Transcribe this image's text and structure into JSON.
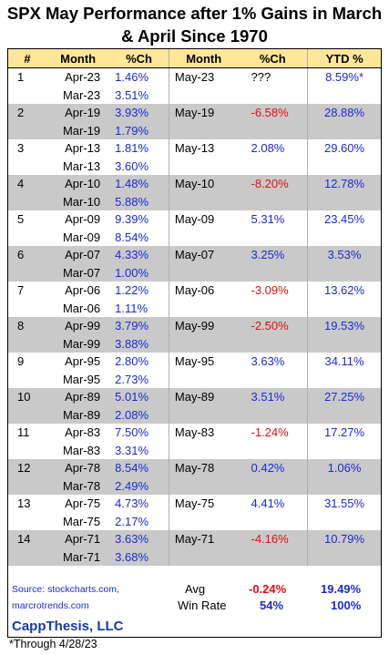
{
  "title_line1": "SPX May Performance after 1% Gains in March",
  "title_line2": "& April Since 1970",
  "headers": [
    "#",
    "Month",
    "%Ch",
    "Month",
    "%Ch",
    "YTD %"
  ],
  "rows": [
    {
      "n": "1",
      "apr": "Apr-23",
      "apr_ch": "1.46%",
      "mar": "Mar-23",
      "mar_ch": "3.51%",
      "may": "May-23",
      "may_ch": "???",
      "may_sign": "unk",
      "ytd": "8.59%*"
    },
    {
      "n": "2",
      "apr": "Apr-19",
      "apr_ch": "3.93%",
      "mar": "Mar-19",
      "mar_ch": "1.79%",
      "may": "May-19",
      "may_ch": "-6.58%",
      "may_sign": "neg",
      "ytd": "28.88%"
    },
    {
      "n": "3",
      "apr": "Apr-13",
      "apr_ch": "1.81%",
      "mar": "Mar-13",
      "mar_ch": "3.60%",
      "may": "May-13",
      "may_ch": "2.08%",
      "may_sign": "pos",
      "ytd": "29.60%"
    },
    {
      "n": "4",
      "apr": "Apr-10",
      "apr_ch": "1.48%",
      "mar": "Mar-10",
      "mar_ch": "5.88%",
      "may": "May-10",
      "may_ch": "-8.20%",
      "may_sign": "neg",
      "ytd": "12.78%"
    },
    {
      "n": "5",
      "apr": "Apr-09",
      "apr_ch": "9.39%",
      "mar": "Mar-09",
      "mar_ch": "8.54%",
      "may": "May-09",
      "may_ch": "5.31%",
      "may_sign": "pos",
      "ytd": "23.45%"
    },
    {
      "n": "6",
      "apr": "Apr-07",
      "apr_ch": "4.33%",
      "mar": "Mar-07",
      "mar_ch": "1.00%",
      "may": "May-07",
      "may_ch": "3.25%",
      "may_sign": "pos",
      "ytd": "3.53%"
    },
    {
      "n": "7",
      "apr": "Apr-06",
      "apr_ch": "1.22%",
      "mar": "Mar-06",
      "mar_ch": "1.11%",
      "may": "May-06",
      "may_ch": "-3.09%",
      "may_sign": "neg",
      "ytd": "13.62%"
    },
    {
      "n": "8",
      "apr": "Apr-99",
      "apr_ch": "3.79%",
      "mar": "Mar-99",
      "mar_ch": "3.88%",
      "may": "May-99",
      "may_ch": "-2.50%",
      "may_sign": "neg",
      "ytd": "19.53%"
    },
    {
      "n": "9",
      "apr": "Apr-95",
      "apr_ch": "2.80%",
      "mar": "Mar-95",
      "mar_ch": "2.73%",
      "may": "May-95",
      "may_ch": "3.63%",
      "may_sign": "pos",
      "ytd": "34.11%"
    },
    {
      "n": "10",
      "apr": "Apr-89",
      "apr_ch": "5.01%",
      "mar": "Mar-89",
      "mar_ch": "2.08%",
      "may": "May-89",
      "may_ch": "3.51%",
      "may_sign": "pos",
      "ytd": "27.25%"
    },
    {
      "n": "11",
      "apr": "Apr-83",
      "apr_ch": "7.50%",
      "mar": "Mar-83",
      "mar_ch": "3.31%",
      "may": "May-83",
      "may_ch": "-1.24%",
      "may_sign": "neg",
      "ytd": "17.27%"
    },
    {
      "n": "12",
      "apr": "Apr-78",
      "apr_ch": "8.54%",
      "mar": "Mar-78",
      "mar_ch": "2.49%",
      "may": "May-78",
      "may_ch": "0.42%",
      "may_sign": "pos",
      "ytd": "1.06%"
    },
    {
      "n": "13",
      "apr": "Apr-75",
      "apr_ch": "4.73%",
      "mar": "Mar-75",
      "mar_ch": "2.17%",
      "may": "May-75",
      "may_ch": "4.41%",
      "may_sign": "pos",
      "ytd": "31.55%"
    },
    {
      "n": "14",
      "apr": "Apr-71",
      "apr_ch": "3.63%",
      "mar": "Mar-71",
      "mar_ch": "3.68%",
      "may": "May-71",
      "may_ch": "-4.16%",
      "may_sign": "neg",
      "ytd": "10.79%"
    }
  ],
  "footer": {
    "source_line1": "Source: stockcharts.com,",
    "source_line2": "marcrotrends.com",
    "brand": "CappThesis, LLC",
    "avg_label": "Avg",
    "avg_may": "-0.24%",
    "avg_ytd": "19.49%",
    "winrate_label": "Win Rate",
    "winrate_may": "54%",
    "winrate_ytd": "100%"
  },
  "note": "*Through 4/28/23",
  "colors": {
    "header_bg": "#ffe699",
    "shade_bg": "#c9c9c9",
    "positive": "#1a2bd6",
    "negative": "#e01010",
    "brand": "#1a3aa8"
  }
}
